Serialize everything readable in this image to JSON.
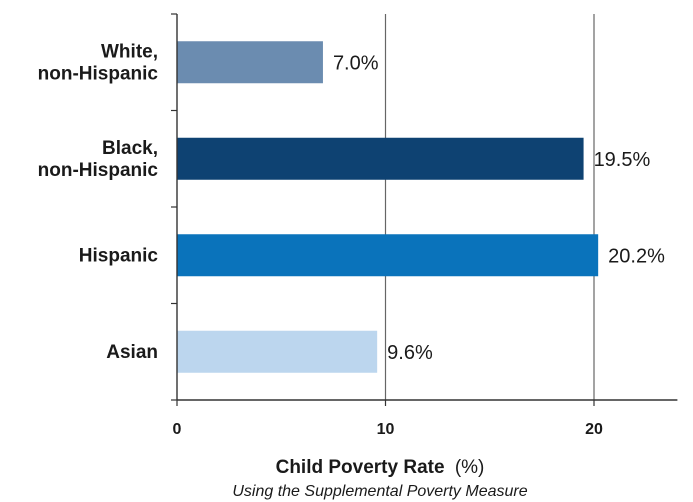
{
  "chart_data": {
    "type": "bar",
    "orientation": "horizontal",
    "categories": [
      [
        "White,",
        "non-Hispanic"
      ],
      [
        "Black,",
        "non-Hispanic"
      ],
      [
        "Hispanic"
      ],
      [
        "Asian"
      ]
    ],
    "values": [
      7.0,
      19.5,
      20.2,
      9.6
    ],
    "value_labels": [
      "7.0%",
      "19.5%",
      "20.2%",
      "9.6%"
    ],
    "colors": [
      "#6b8cb0",
      "#0e4272",
      "#0a73bb",
      "#bcd6ee"
    ],
    "xlim": [
      0,
      24
    ],
    "xticks": [
      0,
      10,
      20
    ],
    "xtick_labels": [
      "0",
      "10",
      "20"
    ],
    "gridlines_at": [
      10,
      20
    ],
    "xlabel_main": "Child Poverty Rate",
    "xlabel_unit": "(%)",
    "subtitle": "Using the Supplemental Poverty Measure",
    "grid": true,
    "legend": "none"
  }
}
